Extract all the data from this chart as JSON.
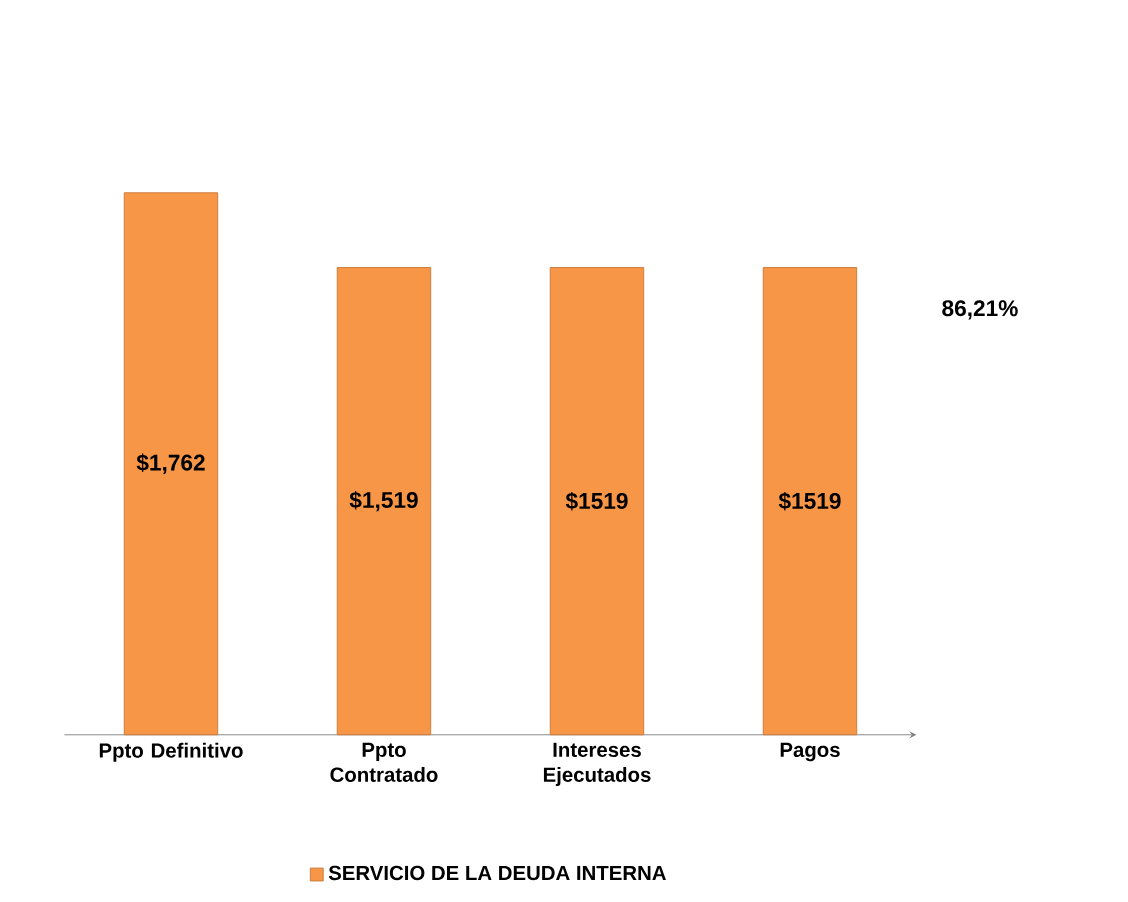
{
  "chart_data": {
    "type": "bar",
    "categories": [
      "Ppto Definitivo",
      "Ppto Contratado",
      "Intereses Ejecutados",
      "Pagos"
    ],
    "series": [
      {
        "name": "SERVICIO DE LA DEUDA INTERNA",
        "color": "#f79646",
        "values": [
          1762,
          1519,
          1519,
          1519
        ],
        "value_labels": [
          "$1,762",
          "$1,519",
          "$1519",
          "$1519"
        ]
      }
    ],
    "annotations": [
      "86,21%"
    ],
    "legend": "bottom"
  }
}
